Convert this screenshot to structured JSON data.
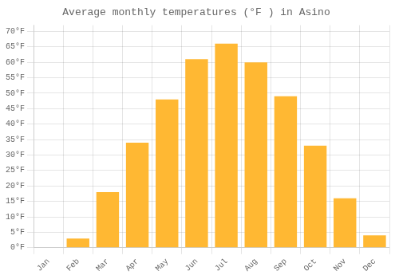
{
  "chart_data": {
    "type": "bar",
    "title": "Average monthly temperatures (°F ) in Asino",
    "categories": [
      "Jan",
      "Feb",
      "Mar",
      "Apr",
      "May",
      "Jun",
      "Jul",
      "Aug",
      "Sep",
      "Oct",
      "Nov",
      "Dec"
    ],
    "values": [
      0,
      3,
      18,
      34,
      48,
      61,
      66,
      60,
      49,
      33,
      16,
      4
    ],
    "color": "#FFB833",
    "ylim": [
      0,
      72
    ],
    "yticks": [
      {
        "value": 0,
        "label": "0°F"
      },
      {
        "value": 5,
        "label": "5°F"
      },
      {
        "value": 10,
        "label": "10°F"
      },
      {
        "value": 15,
        "label": "15°F"
      },
      {
        "value": 20,
        "label": "20°F"
      },
      {
        "value": 25,
        "label": "25°F"
      },
      {
        "value": 30,
        "label": "30°F"
      },
      {
        "value": 35,
        "label": "35°F"
      },
      {
        "value": 40,
        "label": "40°F"
      },
      {
        "value": 45,
        "label": "45°F"
      },
      {
        "value": 50,
        "label": "50°F"
      },
      {
        "value": 55,
        "label": "55°F"
      },
      {
        "value": 60,
        "label": "60°F"
      },
      {
        "value": 65,
        "label": "65°F"
      },
      {
        "value": 70,
        "label": "70°F"
      }
    ],
    "grid": true
  }
}
